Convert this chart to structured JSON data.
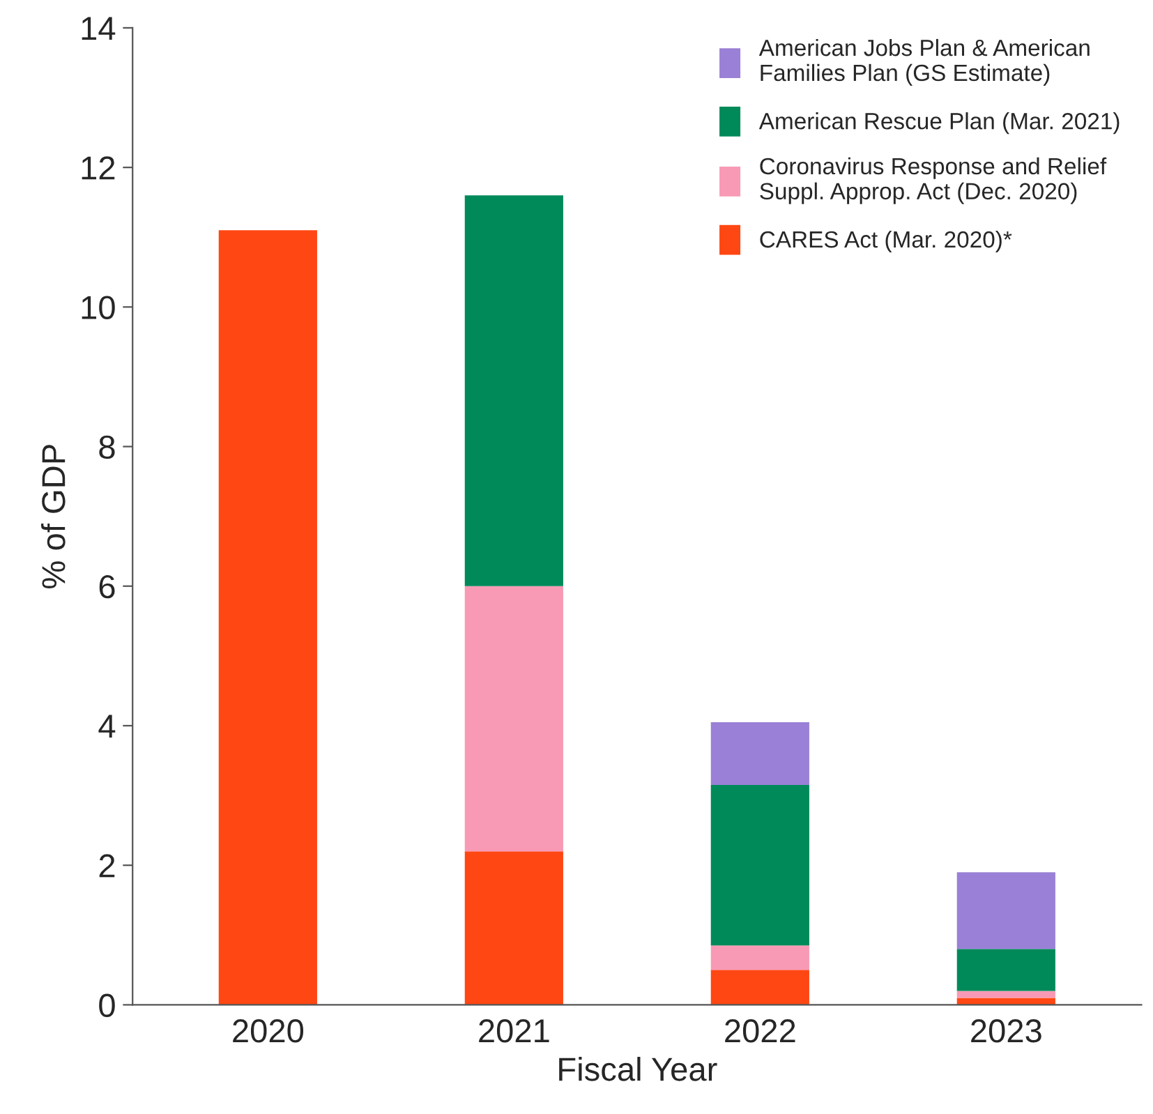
{
  "chart_data": {
    "type": "bar",
    "stacked": true,
    "xlabel": "Fiscal Year",
    "ylabel": "% of GDP",
    "categories": [
      "2020",
      "2021",
      "2022",
      "2023"
    ],
    "series": [
      {
        "name": "CARES Act (Mar. 2020)*",
        "color": "#ff4713",
        "values": [
          11.1,
          2.2,
          0.5,
          0.1
        ]
      },
      {
        "name": "Coronavirus Response and Relief Suppl. Approp. Act (Dec. 2020)",
        "color": "#f89ab5",
        "values": [
          null,
          3.8,
          0.35,
          0.1
        ]
      },
      {
        "name": "American Rescue Plan (Mar. 2021)",
        "color": "#008a5a",
        "values": [
          null,
          5.6,
          2.3,
          0.6
        ]
      },
      {
        "name": "American Jobs Plan & American Families Plan (GS Estimate)",
        "color": "#9a80d6",
        "values": [
          null,
          null,
          0.9,
          1.1
        ]
      }
    ],
    "ylim": [
      0,
      14
    ],
    "yticks": [
      0,
      2,
      4,
      6,
      8,
      10,
      12,
      14
    ],
    "grid": false,
    "legend": "top right"
  }
}
